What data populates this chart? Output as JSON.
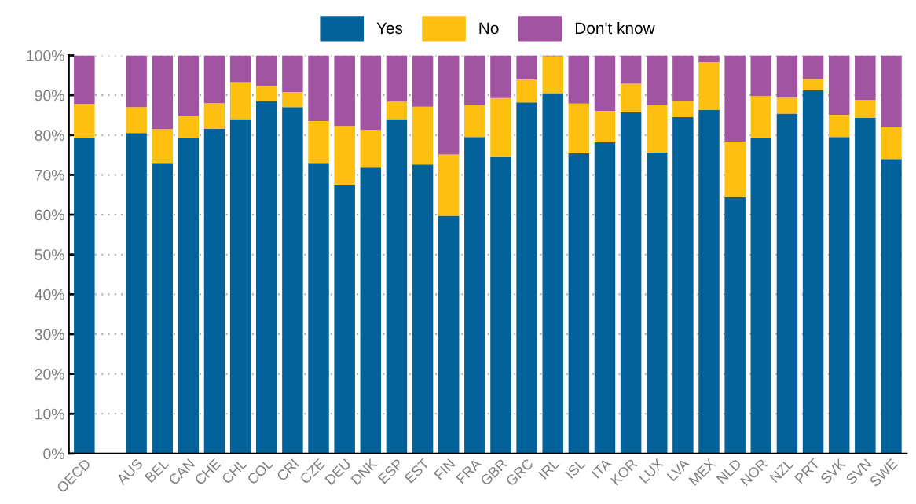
{
  "chart_data": {
    "type": "bar",
    "stacked": true,
    "categories": [
      "OECD",
      null,
      "AUS",
      "BEL",
      "CAN",
      "CHE",
      "CHL",
      "COL",
      "CRI",
      "CZE",
      "DEU",
      "DNK",
      "ESP",
      "EST",
      "FIN",
      "FRA",
      "GBR",
      "GRC",
      "IRL",
      "ISL",
      "ITA",
      "KOR",
      "LUX",
      "LVA",
      "MEX",
      "NLD",
      "NOR",
      "NZL",
      "PRT",
      "SVK",
      "SVN",
      "SWE"
    ],
    "series": [
      {
        "name": "Yes",
        "color": "#04629a",
        "values": [
          79.3,
          null,
          80.5,
          73.0,
          79.2,
          81.6,
          84.0,
          88.5,
          87.0,
          73.0,
          67.5,
          71.8,
          84.0,
          72.6,
          59.7,
          79.5,
          74.5,
          88.2,
          90.5,
          75.4,
          78.2,
          85.7,
          75.6,
          84.5,
          86.3,
          64.4,
          79.2,
          85.4,
          91.2,
          79.5,
          84.3,
          74.0
        ]
      },
      {
        "name": "No",
        "color": "#fdc010",
        "values": [
          8.5,
          null,
          6.5,
          8.5,
          5.6,
          6.4,
          9.3,
          3.8,
          3.8,
          10.5,
          14.8,
          9.5,
          4.4,
          14.5,
          15.4,
          8.0,
          14.8,
          5.8,
          9.3,
          12.5,
          7.9,
          7.2,
          11.9,
          4.1,
          12.0,
          14.0,
          10.6,
          4.0,
          2.9,
          5.6,
          4.5,
          8.0
        ]
      },
      {
        "name": "Don't know",
        "color": "#a154a1",
        "values": [
          12.2,
          null,
          13.0,
          18.5,
          15.2,
          12.0,
          6.7,
          7.7,
          9.2,
          16.5,
          17.7,
          18.7,
          11.6,
          12.9,
          24.9,
          12.5,
          10.7,
          6.0,
          0.2,
          12.1,
          13.9,
          7.1,
          12.5,
          11.4,
          1.7,
          21.6,
          10.2,
          10.6,
          5.9,
          14.9,
          11.2,
          18.0
        ]
      }
    ],
    "ylim": [
      0,
      100
    ],
    "yticks": [
      {
        "value": 0,
        "label": "0%"
      },
      {
        "value": 10,
        "label": "10%"
      },
      {
        "value": 20,
        "label": "20%"
      },
      {
        "value": 30,
        "label": "30%"
      },
      {
        "value": 40,
        "label": "40%"
      },
      {
        "value": 50,
        "label": "50%"
      },
      {
        "value": 60,
        "label": "60%"
      },
      {
        "value": 70,
        "label": "70%"
      },
      {
        "value": 80,
        "label": "80%"
      },
      {
        "value": 90,
        "label": "90%"
      },
      {
        "value": 100,
        "label": "100%"
      }
    ],
    "grid": "y",
    "legend": "top"
  }
}
